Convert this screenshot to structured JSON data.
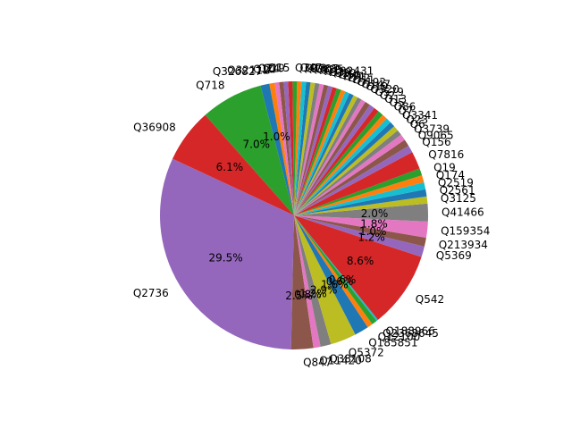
{
  "chart_data": {
    "type": "pie",
    "startangle_deg": 155,
    "counterclock": true,
    "slices": [
      {
        "label": "Q2736",
        "value": 29.5,
        "pct": "29.5%",
        "color": "#9467bd"
      },
      {
        "label": "Q847",
        "value": 2.5,
        "pct": "2.5%",
        "color": "#8c564b"
      },
      {
        "label": "Q11420",
        "value": 0.8,
        "pct": "0.8%",
        "color": "#e377c2"
      },
      {
        "label": "Q38108",
        "value": 1.2,
        "pct": "1.2%",
        "color": "#7f7f7f"
      },
      {
        "label": "Q5372",
        "value": 2.9,
        "pct": "2.9%",
        "color": "#bcbd22"
      },
      {
        "label": "Q185851",
        "value": 1.6,
        "pct": "1.6%",
        "color": "#1f77b4"
      },
      {
        "label": "Q12100",
        "value": 0.6,
        "pct": "0.6%",
        "color": "#ff7f0e"
      },
      {
        "label": "Q2368645",
        "value": 0.6,
        "pct": "0.6%",
        "color": "#2ca02c"
      },
      {
        "label": "Q188966",
        "value": 0.2,
        "pct": "",
        "color": "#17becf"
      },
      {
        "label": "Q542",
        "value": 8.6,
        "pct": "8.6%",
        "color": "#d62728"
      },
      {
        "label": "Q5369",
        "value": 1.2,
        "pct": "1.2%",
        "color": "#9467bd"
      },
      {
        "label": "Q213934",
        "value": 1.0,
        "pct": "1.0%",
        "color": "#8c564b"
      },
      {
        "label": "Q159354",
        "value": 1.8,
        "pct": "1.8%",
        "color": "#e377c2"
      },
      {
        "label": "Q41466",
        "value": 2.0,
        "pct": "2.0%",
        "color": "#7f7f7f"
      },
      {
        "label": "Q3125",
        "value": 0.8,
        "pct": "",
        "color": "#bcbd22"
      },
      {
        "label": "Q2561",
        "value": 0.8,
        "pct": "",
        "color": "#1f77b4"
      },
      {
        "label": "Q2519",
        "value": 0.8,
        "pct": "",
        "color": "#17becf"
      },
      {
        "label": "Q174",
        "value": 0.8,
        "pct": "",
        "color": "#ff7f0e"
      },
      {
        "label": "Q19",
        "value": 0.8,
        "pct": "",
        "color": "#2ca02c"
      },
      {
        "label": "Q7816",
        "value": 2.0,
        "pct": "",
        "color": "#d62728"
      },
      {
        "label": "Q156",
        "value": 0.8,
        "pct": "",
        "color": "#9467bd"
      },
      {
        "label": "Q9065",
        "value": 0.8,
        "pct": "",
        "color": "#8c564b"
      },
      {
        "label": "Q3739",
        "value": 0.7,
        "pct": "",
        "color": "#e377c2"
      },
      {
        "label": "Q6",
        "value": 0.6,
        "pct": "",
        "color": "#7f7f7f"
      },
      {
        "label": "Q23",
        "value": 0.6,
        "pct": "",
        "color": "#bcbd22"
      },
      {
        "label": "Q3341",
        "value": 0.6,
        "pct": "",
        "color": "#1f77b4"
      },
      {
        "label": "Q7",
        "value": 0.6,
        "pct": "",
        "color": "#17becf"
      },
      {
        "label": "Q86",
        "value": 0.6,
        "pct": "",
        "color": "#ff7f0e"
      },
      {
        "label": "Q5",
        "value": 0.6,
        "pct": "",
        "color": "#2ca02c"
      },
      {
        "label": "Q13",
        "value": 0.6,
        "pct": "",
        "color": "#d62728"
      },
      {
        "label": "Q2",
        "value": 0.6,
        "pct": "",
        "color": "#9467bd"
      },
      {
        "label": "Q579",
        "value": 0.6,
        "pct": "",
        "color": "#8c564b"
      },
      {
        "label": "Q320",
        "value": 0.5,
        "pct": "",
        "color": "#e377c2"
      },
      {
        "label": "Q19",
        "value": 0.5,
        "pct": "",
        "color": "#7f7f7f"
      },
      {
        "label": "Q147",
        "value": 0.5,
        "pct": "",
        "color": "#bcbd22"
      },
      {
        "label": "Q192",
        "value": 0.5,
        "pct": "",
        "color": "#1f77b4"
      },
      {
        "label": "Q11",
        "value": 0.5,
        "pct": "",
        "color": "#17becf"
      },
      {
        "label": "Q12",
        "value": 0.5,
        "pct": "",
        "color": "#ff7f0e"
      },
      {
        "label": "Q91",
        "value": 0.5,
        "pct": "",
        "color": "#2ca02c"
      },
      {
        "label": "Q50",
        "value": 0.5,
        "pct": "",
        "color": "#d62728"
      },
      {
        "label": "Q29",
        "value": 0.5,
        "pct": "",
        "color": "#9467bd"
      },
      {
        "label": "Q39",
        "value": 0.5,
        "pct": "",
        "color": "#8c564b"
      },
      {
        "label": "Q192431",
        "value": 0.5,
        "pct": "",
        "color": "#e377c2"
      },
      {
        "label": "Q38",
        "value": 0.5,
        "pct": "",
        "color": "#7f7f7f"
      },
      {
        "label": "Q835",
        "value": 0.5,
        "pct": "",
        "color": "#bcbd22"
      },
      {
        "label": "Q907",
        "value": 0.5,
        "pct": "",
        "color": "#1f77b4"
      },
      {
        "label": "Q13",
        "value": 0.5,
        "pct": "",
        "color": "#17becf"
      },
      {
        "label": "Q47",
        "value": 0.5,
        "pct": "",
        "color": "#ff7f0e"
      },
      {
        "label": "Q39",
        "value": 0.5,
        "pct": "",
        "color": "#2ca02c"
      },
      {
        "label": "Q15",
        "value": 0.5,
        "pct": "",
        "color": "#d62728"
      },
      {
        "label": "Q19",
        "value": 0.5,
        "pct": "",
        "color": "#9467bd"
      },
      {
        "label": "Q24",
        "value": 0.5,
        "pct": "",
        "color": "#8c564b"
      },
      {
        "label": "Q10",
        "value": 0.5,
        "pct": "",
        "color": "#e377c2"
      },
      {
        "label": "Q32112",
        "value": 0.6,
        "pct": "",
        "color": "#ff7f0e"
      },
      {
        "label": "Q326827",
        "value": 1.0,
        "pct": "1.0%",
        "color": "#1f77b4"
      },
      {
        "label": "Q718",
        "value": 7.0,
        "pct": "7.0%",
        "color": "#2ca02c"
      },
      {
        "label": "Q36908",
        "value": 6.1,
        "pct": "6.1%",
        "color": "#d62728"
      }
    ]
  }
}
